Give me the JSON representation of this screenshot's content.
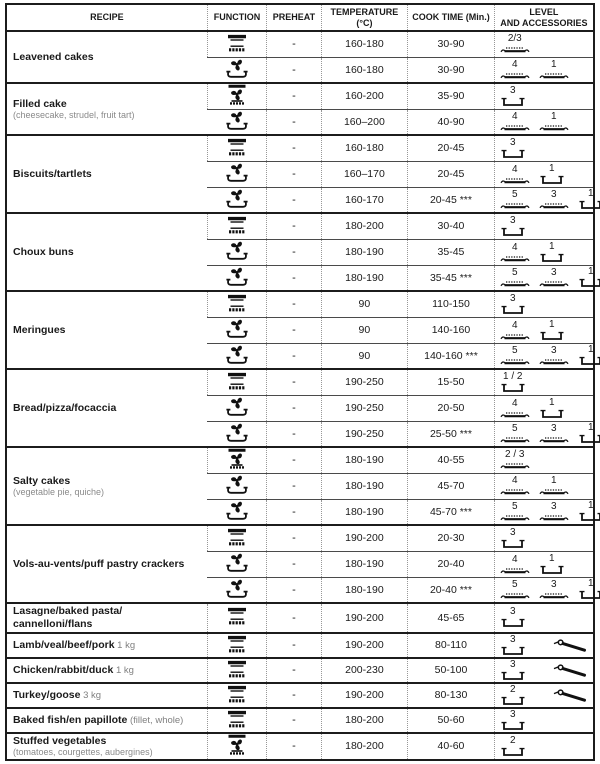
{
  "colors": {
    "ink": "#1a1a1a",
    "grid_dotted": "#979797",
    "note_text": "#8a8a8a"
  },
  "table": {
    "columns": [
      {
        "label": "RECIPE",
        "label2": ""
      },
      {
        "label": "FUNCTION",
        "label2": ""
      },
      {
        "label": "PREHEAT",
        "label2": ""
      },
      {
        "label": "TEMPERATURE",
        "label2": "(°C)"
      },
      {
        "label": "COOK TIME (Min.)",
        "label2": ""
      },
      {
        "label": "LEVEL",
        "label2": "AND ACCESSORIES"
      }
    ],
    "icon_legend": {
      "conventional": "static-top-bottom-heat-icon",
      "forced_air_tray": "fan-over-tray-icon",
      "fan_top_bottom": "fan-with-top-bottom-heat-icon",
      "tray": "baking-tray-icon",
      "wire_shelf": "wire-shelf-icon",
      "probe": "meat-probe-icon"
    },
    "groups": [
      {
        "name": "Leavened cakes",
        "note": "",
        "suffix": "",
        "note_inline": "",
        "rows": [
          {
            "function": "conventional",
            "preheat": "-",
            "temperature": "160-180",
            "cook_time": "30-90",
            "levels": [
              {
                "level": "2/3",
                "accessory": "tray"
              }
            ],
            "probe": false
          },
          {
            "function": "forced_air_tray",
            "preheat": "-",
            "temperature": "160-180",
            "cook_time": "30-90",
            "levels": [
              {
                "level": "4",
                "accessory": "tray"
              },
              {
                "level": "1",
                "accessory": "tray"
              }
            ],
            "probe": false
          }
        ]
      },
      {
        "name": "Filled cake",
        "note": "(cheesecake, strudel, fruit tart)",
        "suffix": "",
        "note_inline": "",
        "rows": [
          {
            "function": "fan_top_bottom",
            "preheat": "-",
            "temperature": "160-200",
            "cook_time": "35-90",
            "levels": [
              {
                "level": "3",
                "accessory": "wire_shelf"
              }
            ],
            "probe": false
          },
          {
            "function": "forced_air_tray",
            "preheat": "-",
            "temperature": "160–200",
            "cook_time": "40-90",
            "levels": [
              {
                "level": "4",
                "accessory": "tray"
              },
              {
                "level": "1",
                "accessory": "tray"
              }
            ],
            "probe": false
          }
        ]
      },
      {
        "name": "Biscuits/tartlets",
        "note": "",
        "suffix": "",
        "note_inline": "",
        "rows": [
          {
            "function": "conventional",
            "preheat": "-",
            "temperature": "160-180",
            "cook_time": "20-45",
            "levels": [
              {
                "level": "3",
                "accessory": "wire_shelf"
              }
            ],
            "probe": false
          },
          {
            "function": "forced_air_tray",
            "preheat": "-",
            "temperature": "160–170",
            "cook_time": "20-45",
            "levels": [
              {
                "level": "4",
                "accessory": "tray"
              },
              {
                "level": "1",
                "accessory": "wire_shelf"
              }
            ],
            "probe": false
          },
          {
            "function": "forced_air_tray",
            "preheat": "-",
            "temperature": "160-170",
            "cook_time": "20-45 ***",
            "levels": [
              {
                "level": "5",
                "accessory": "tray"
              },
              {
                "level": "3",
                "accessory": "tray"
              },
              {
                "level": "1",
                "accessory": "wire_shelf"
              }
            ],
            "probe": false
          }
        ]
      },
      {
        "name": "Choux buns",
        "note": "",
        "suffix": "",
        "note_inline": "",
        "rows": [
          {
            "function": "conventional",
            "preheat": "-",
            "temperature": "180-200",
            "cook_time": "30-40",
            "levels": [
              {
                "level": "3",
                "accessory": "wire_shelf"
              }
            ],
            "probe": false
          },
          {
            "function": "forced_air_tray",
            "preheat": "-",
            "temperature": "180-190",
            "cook_time": "35-45",
            "levels": [
              {
                "level": "4",
                "accessory": "tray"
              },
              {
                "level": "1",
                "accessory": "wire_shelf"
              }
            ],
            "probe": false
          },
          {
            "function": "forced_air_tray",
            "preheat": "-",
            "temperature": "180-190",
            "cook_time": "35-45 ***",
            "levels": [
              {
                "level": "5",
                "accessory": "tray"
              },
              {
                "level": "3",
                "accessory": "tray"
              },
              {
                "level": "1",
                "accessory": "wire_shelf"
              }
            ],
            "probe": false
          }
        ]
      },
      {
        "name": "Meringues",
        "note": "",
        "suffix": "",
        "note_inline": "",
        "rows": [
          {
            "function": "conventional",
            "preheat": "-",
            "temperature": "90",
            "cook_time": "110-150",
            "levels": [
              {
                "level": "3",
                "accessory": "wire_shelf"
              }
            ],
            "probe": false
          },
          {
            "function": "forced_air_tray",
            "preheat": "-",
            "temperature": "90",
            "cook_time": "140-160",
            "levels": [
              {
                "level": "4",
                "accessory": "tray"
              },
              {
                "level": "1",
                "accessory": "wire_shelf"
              }
            ],
            "probe": false
          },
          {
            "function": "forced_air_tray",
            "preheat": "-",
            "temperature": "90",
            "cook_time": "140-160 ***",
            "levels": [
              {
                "level": "5",
                "accessory": "tray"
              },
              {
                "level": "3",
                "accessory": "tray"
              },
              {
                "level": "1",
                "accessory": "wire_shelf"
              }
            ],
            "probe": false
          }
        ]
      },
      {
        "name": "Bread/pizza/focaccia",
        "note": "",
        "suffix": "",
        "note_inline": "",
        "rows": [
          {
            "function": "conventional",
            "preheat": "-",
            "temperature": "190-250",
            "cook_time": "15-50",
            "levels": [
              {
                "level": "1 / 2",
                "accessory": "wire_shelf"
              }
            ],
            "probe": false
          },
          {
            "function": "forced_air_tray",
            "preheat": "-",
            "temperature": "190-250",
            "cook_time": "20-50",
            "levels": [
              {
                "level": "4",
                "accessory": "tray"
              },
              {
                "level": "1",
                "accessory": "wire_shelf"
              }
            ],
            "probe": false
          },
          {
            "function": "forced_air_tray",
            "preheat": "-",
            "temperature": "190-250",
            "cook_time": "25-50 ***",
            "levels": [
              {
                "level": "5",
                "accessory": "tray"
              },
              {
                "level": "3",
                "accessory": "tray"
              },
              {
                "level": "1",
                "accessory": "wire_shelf"
              }
            ],
            "probe": false
          }
        ]
      },
      {
        "name": "Salty cakes",
        "note": "(vegetable pie, quiche)",
        "suffix": "",
        "note_inline": "",
        "rows": [
          {
            "function": "fan_top_bottom",
            "preheat": "-",
            "temperature": "180-190",
            "cook_time": "40-55",
            "levels": [
              {
                "level": "2 / 3",
                "accessory": "tray"
              }
            ],
            "probe": false
          },
          {
            "function": "forced_air_tray",
            "preheat": "-",
            "temperature": "180-190",
            "cook_time": "45-70",
            "levels": [
              {
                "level": "4",
                "accessory": "tray"
              },
              {
                "level": "1",
                "accessory": "tray"
              }
            ],
            "probe": false
          },
          {
            "function": "forced_air_tray",
            "preheat": "-",
            "temperature": "180-190",
            "cook_time": "45-70 ***",
            "levels": [
              {
                "level": "5",
                "accessory": "tray"
              },
              {
                "level": "3",
                "accessory": "tray"
              },
              {
                "level": "1",
                "accessory": "wire_shelf"
              }
            ],
            "probe": false
          }
        ]
      },
      {
        "name": "Vols-au-vents/puff pastry crackers",
        "note": "",
        "suffix": "",
        "note_inline": "",
        "rows": [
          {
            "function": "conventional",
            "preheat": "-",
            "temperature": "190-200",
            "cook_time": "20-30",
            "levels": [
              {
                "level": "3",
                "accessory": "wire_shelf"
              }
            ],
            "probe": false
          },
          {
            "function": "forced_air_tray",
            "preheat": "-",
            "temperature": "180-190",
            "cook_time": "20-40",
            "levels": [
              {
                "level": "4",
                "accessory": "tray"
              },
              {
                "level": "1",
                "accessory": "wire_shelf"
              }
            ],
            "probe": false
          },
          {
            "function": "forced_air_tray",
            "preheat": "-",
            "temperature": "180-190",
            "cook_time": "20-40 ***",
            "levels": [
              {
                "level": "5",
                "accessory": "tray"
              },
              {
                "level": "3",
                "accessory": "tray"
              },
              {
                "level": "1",
                "accessory": "wire_shelf"
              }
            ],
            "probe": false
          }
        ]
      },
      {
        "name": "Lasagne/baked pasta/\ncannelloni/flans",
        "note": "",
        "suffix": "",
        "note_inline": "",
        "rows": [
          {
            "function": "conventional",
            "preheat": "-",
            "temperature": "190-200",
            "cook_time": "45-65",
            "levels": [
              {
                "level": "3",
                "accessory": "wire_shelf"
              }
            ],
            "probe": false
          }
        ]
      },
      {
        "name": "Lamb/veal/beef/pork",
        "note": "",
        "suffix": "1 kg",
        "note_inline": "",
        "rows": [
          {
            "function": "conventional",
            "preheat": "-",
            "temperature": "190-200",
            "cook_time": "80-110",
            "levels": [
              {
                "level": "3",
                "accessory": "wire_shelf"
              }
            ],
            "probe": true
          }
        ]
      },
      {
        "name": "Chicken/rabbit/duck",
        "note": "",
        "suffix": "1 kg",
        "note_inline": "",
        "rows": [
          {
            "function": "conventional",
            "preheat": "-",
            "temperature": "200-230",
            "cook_time": "50-100",
            "levels": [
              {
                "level": "3",
                "accessory": "wire_shelf"
              }
            ],
            "probe": true
          }
        ]
      },
      {
        "name": "Turkey/goose",
        "note": "",
        "suffix": "3 kg",
        "note_inline": "",
        "rows": [
          {
            "function": "conventional",
            "preheat": "-",
            "temperature": "190-200",
            "cook_time": "80-130",
            "levels": [
              {
                "level": "2",
                "accessory": "wire_shelf"
              }
            ],
            "probe": true
          }
        ]
      },
      {
        "name": "Baked fish/en papillote",
        "note": "",
        "suffix": "",
        "note_inline": "(fillet, whole)",
        "rows": [
          {
            "function": "conventional",
            "preheat": "-",
            "temperature": "180-200",
            "cook_time": "50-60",
            "levels": [
              {
                "level": "3",
                "accessory": "wire_shelf"
              }
            ],
            "probe": false
          }
        ]
      },
      {
        "name": "Stuffed vegetables",
        "note": "(tomatoes, courgettes, aubergines)",
        "suffix": "",
        "note_inline": "",
        "rows": [
          {
            "function": "fan_top_bottom",
            "preheat": "-",
            "temperature": "180-200",
            "cook_time": "40-60",
            "levels": [
              {
                "level": "2",
                "accessory": "wire_shelf"
              }
            ],
            "probe": false
          }
        ]
      }
    ]
  }
}
